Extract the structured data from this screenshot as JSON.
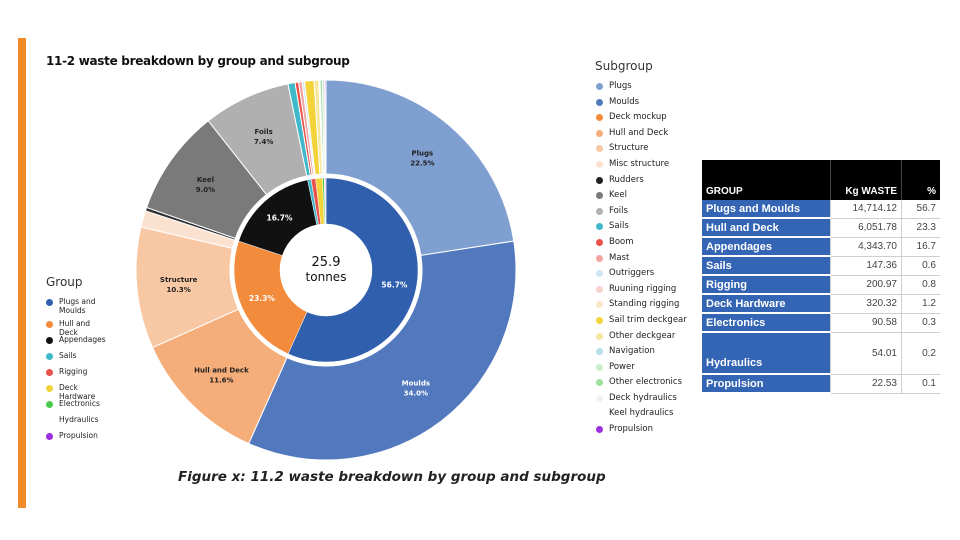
{
  "title": "11-2 waste breakdown by group and subgroup",
  "caption": "Figure x: 11.2 waste breakdown by group and subgroup",
  "center_label": {
    "value": "25.9",
    "unit": "tonnes"
  },
  "group_legend": {
    "title": "Group",
    "items": [
      {
        "label": "Plugs and Moulds",
        "color": "#2f5fad"
      },
      {
        "label": "Hull and Deck",
        "color": "#f28b3b"
      },
      {
        "label": "Appendages",
        "color": "#111111"
      },
      {
        "label": "Sails",
        "color": "#3fb8c9"
      },
      {
        "label": "Rigging",
        "color": "#e8524a"
      },
      {
        "label": "Deck Hardware",
        "color": "#f2d43a"
      },
      {
        "label": "Electronics",
        "color": "#4cc94c"
      },
      {
        "label": "Hydraulics",
        "color": ""
      },
      {
        "label": "Propulsion",
        "color": "#9b2fe0"
      }
    ]
  },
  "subgroup_legend": {
    "title": "Subgroup",
    "items": [
      {
        "label": "Plugs",
        "color": "#7f9fd0"
      },
      {
        "label": "Moulds",
        "color": "#5279be"
      },
      {
        "label": "Deck mockup",
        "color": "#f28b3b"
      },
      {
        "label": "Hull and Deck",
        "color": "#f5ad7a"
      },
      {
        "label": "Structure",
        "color": "#f8c8a4"
      },
      {
        "label": "Misc structure",
        "color": "#fbe2d0"
      },
      {
        "label": "Rudders",
        "color": "#222222"
      },
      {
        "label": "Keel",
        "color": "#7a7a7a"
      },
      {
        "label": "Foils",
        "color": "#b0b0b0"
      },
      {
        "label": "Sails",
        "color": "#3fb8c9"
      },
      {
        "label": "Boom",
        "color": "#e8524a"
      },
      {
        "label": "Mast",
        "color": "#f2a4a0"
      },
      {
        "label": "Outriggers",
        "color": "#cfe6f5"
      },
      {
        "label": "Ruuning rigging",
        "color": "#f7d2d0"
      },
      {
        "label": "Standing rigging",
        "color": "#fbe7c8"
      },
      {
        "label": "Sail trim deckgear",
        "color": "#f2d43a"
      },
      {
        "label": "Other deckgear",
        "color": "#f7e79c"
      },
      {
        "label": "Navigation",
        "color": "#b7dee6"
      },
      {
        "label": "Power",
        "color": "#c8efc8"
      },
      {
        "label": "Other electronics",
        "color": "#9be09b"
      },
      {
        "label": "Deck hydraulics",
        "color": "#f1f1f1"
      },
      {
        "label": "Keel hydraulics",
        "color": ""
      },
      {
        "label": "Propulsion",
        "color": "#9b2fe0"
      }
    ]
  },
  "table": {
    "headers": [
      "GROUP",
      "Kg WASTE",
      "%"
    ],
    "rows": [
      {
        "group": "Plugs and Moulds",
        "kg": "14,714.12",
        "pct": "56.7"
      },
      {
        "group": "Hull and Deck",
        "kg": "6,051.78",
        "pct": "23.3"
      },
      {
        "group": "Appendages",
        "kg": "4,343.70",
        "pct": "16.7"
      },
      {
        "group": "Sails",
        "kg": "147.36",
        "pct": "0.6"
      },
      {
        "group": "Rigging",
        "kg": "200.97",
        "pct": "0.8"
      },
      {
        "group": "Deck Hardware",
        "kg": "320.32",
        "pct": "1.2"
      },
      {
        "group": "Electronics",
        "kg": "90.58",
        "pct": "0.3"
      },
      {
        "group": "Hydraulics",
        "kg": "54.01",
        "pct": "0.2"
      },
      {
        "group": "Propulsion",
        "kg": "22.53",
        "pct": "0.1"
      }
    ]
  },
  "chart_data": {
    "type": "pie",
    "title": "11-2 waste breakdown by group and subgroup",
    "total": "25.9 tonnes",
    "inner_series": {
      "name": "Group",
      "slices": [
        {
          "label": "Plugs and Moulds",
          "value": 56.7,
          "display": "56.7%",
          "color": "#2f5fad"
        },
        {
          "label": "Hull and Deck",
          "value": 23.3,
          "display": "23.3%",
          "color": "#f28b3b"
        },
        {
          "label": "Appendages",
          "value": 16.7,
          "display": "16.7%",
          "color": "#111111"
        },
        {
          "label": "Sails",
          "value": 0.6,
          "display": "",
          "color": "#3fb8c9"
        },
        {
          "label": "Rigging",
          "value": 0.8,
          "display": "",
          "color": "#e8524a"
        },
        {
          "label": "Deck Hardware",
          "value": 1.2,
          "display": "",
          "color": "#f2d43a"
        },
        {
          "label": "Electronics",
          "value": 0.3,
          "display": "",
          "color": "#4cc94c"
        },
        {
          "label": "Hydraulics",
          "value": 0.2,
          "display": "",
          "color": "#dddddd"
        },
        {
          "label": "Propulsion",
          "value": 0.1,
          "display": "",
          "color": "#9b2fe0"
        }
      ]
    },
    "outer_series": {
      "name": "Subgroup",
      "slices": [
        {
          "label": "Plugs",
          "value": 22.5,
          "name_shown": "Plugs",
          "display": "22.5%",
          "color": "#7f9fd0"
        },
        {
          "label": "Moulds",
          "value": 34.0,
          "name_shown": "Moulds",
          "display": "34.0%",
          "color": "#5279be"
        },
        {
          "label": "Hull and Deck",
          "value": 11.6,
          "name_shown": "Hull and Deck",
          "display": "11.6%",
          "color": "#f5ad7a"
        },
        {
          "label": "Structure",
          "value": 10.3,
          "name_shown": "Structure",
          "display": "10.3%",
          "color": "#f8c8a4"
        },
        {
          "label": "Misc structure",
          "value": 1.4,
          "name_shown": "",
          "display": "",
          "color": "#fbe2d0"
        },
        {
          "label": "Rudders",
          "value": 0.3,
          "name_shown": "",
          "display": "",
          "color": "#333333"
        },
        {
          "label": "Keel",
          "value": 9.0,
          "name_shown": "Keel",
          "display": "9.0%",
          "color": "#7a7a7a"
        },
        {
          "label": "Foils",
          "value": 7.4,
          "name_shown": "Foils",
          "display": "7.4%",
          "color": "#b0b0b0"
        },
        {
          "label": "Sails",
          "value": 0.6,
          "name_shown": "",
          "display": "",
          "color": "#3fb8c9"
        },
        {
          "label": "Boom",
          "value": 0.3,
          "name_shown": "",
          "display": "",
          "color": "#e8524a"
        },
        {
          "label": "Mast",
          "value": 0.3,
          "name_shown": "",
          "display": "",
          "color": "#f2a4a0"
        },
        {
          "label": "Outriggers",
          "value": 0.2,
          "name_shown": "",
          "display": "",
          "color": "#cfe6f5"
        },
        {
          "label": "Sail trim deckgear",
          "value": 0.8,
          "name_shown": "",
          "display": "",
          "color": "#f2d43a"
        },
        {
          "label": "Other deckgear",
          "value": 0.4,
          "name_shown": "",
          "display": "",
          "color": "#f7e79c"
        },
        {
          "label": "Navigation",
          "value": 0.1,
          "name_shown": "",
          "display": "",
          "color": "#b7dee6"
        },
        {
          "label": "Other electronics",
          "value": 0.2,
          "name_shown": "",
          "display": "",
          "color": "#9be09b"
        },
        {
          "label": "Deck hydraulics",
          "value": 0.2,
          "name_shown": "",
          "display": "",
          "color": "#dddddd"
        },
        {
          "label": "Propulsion",
          "value": 0.1,
          "name_shown": "",
          "display": "",
          "color": "#9b2fe0"
        }
      ]
    }
  }
}
